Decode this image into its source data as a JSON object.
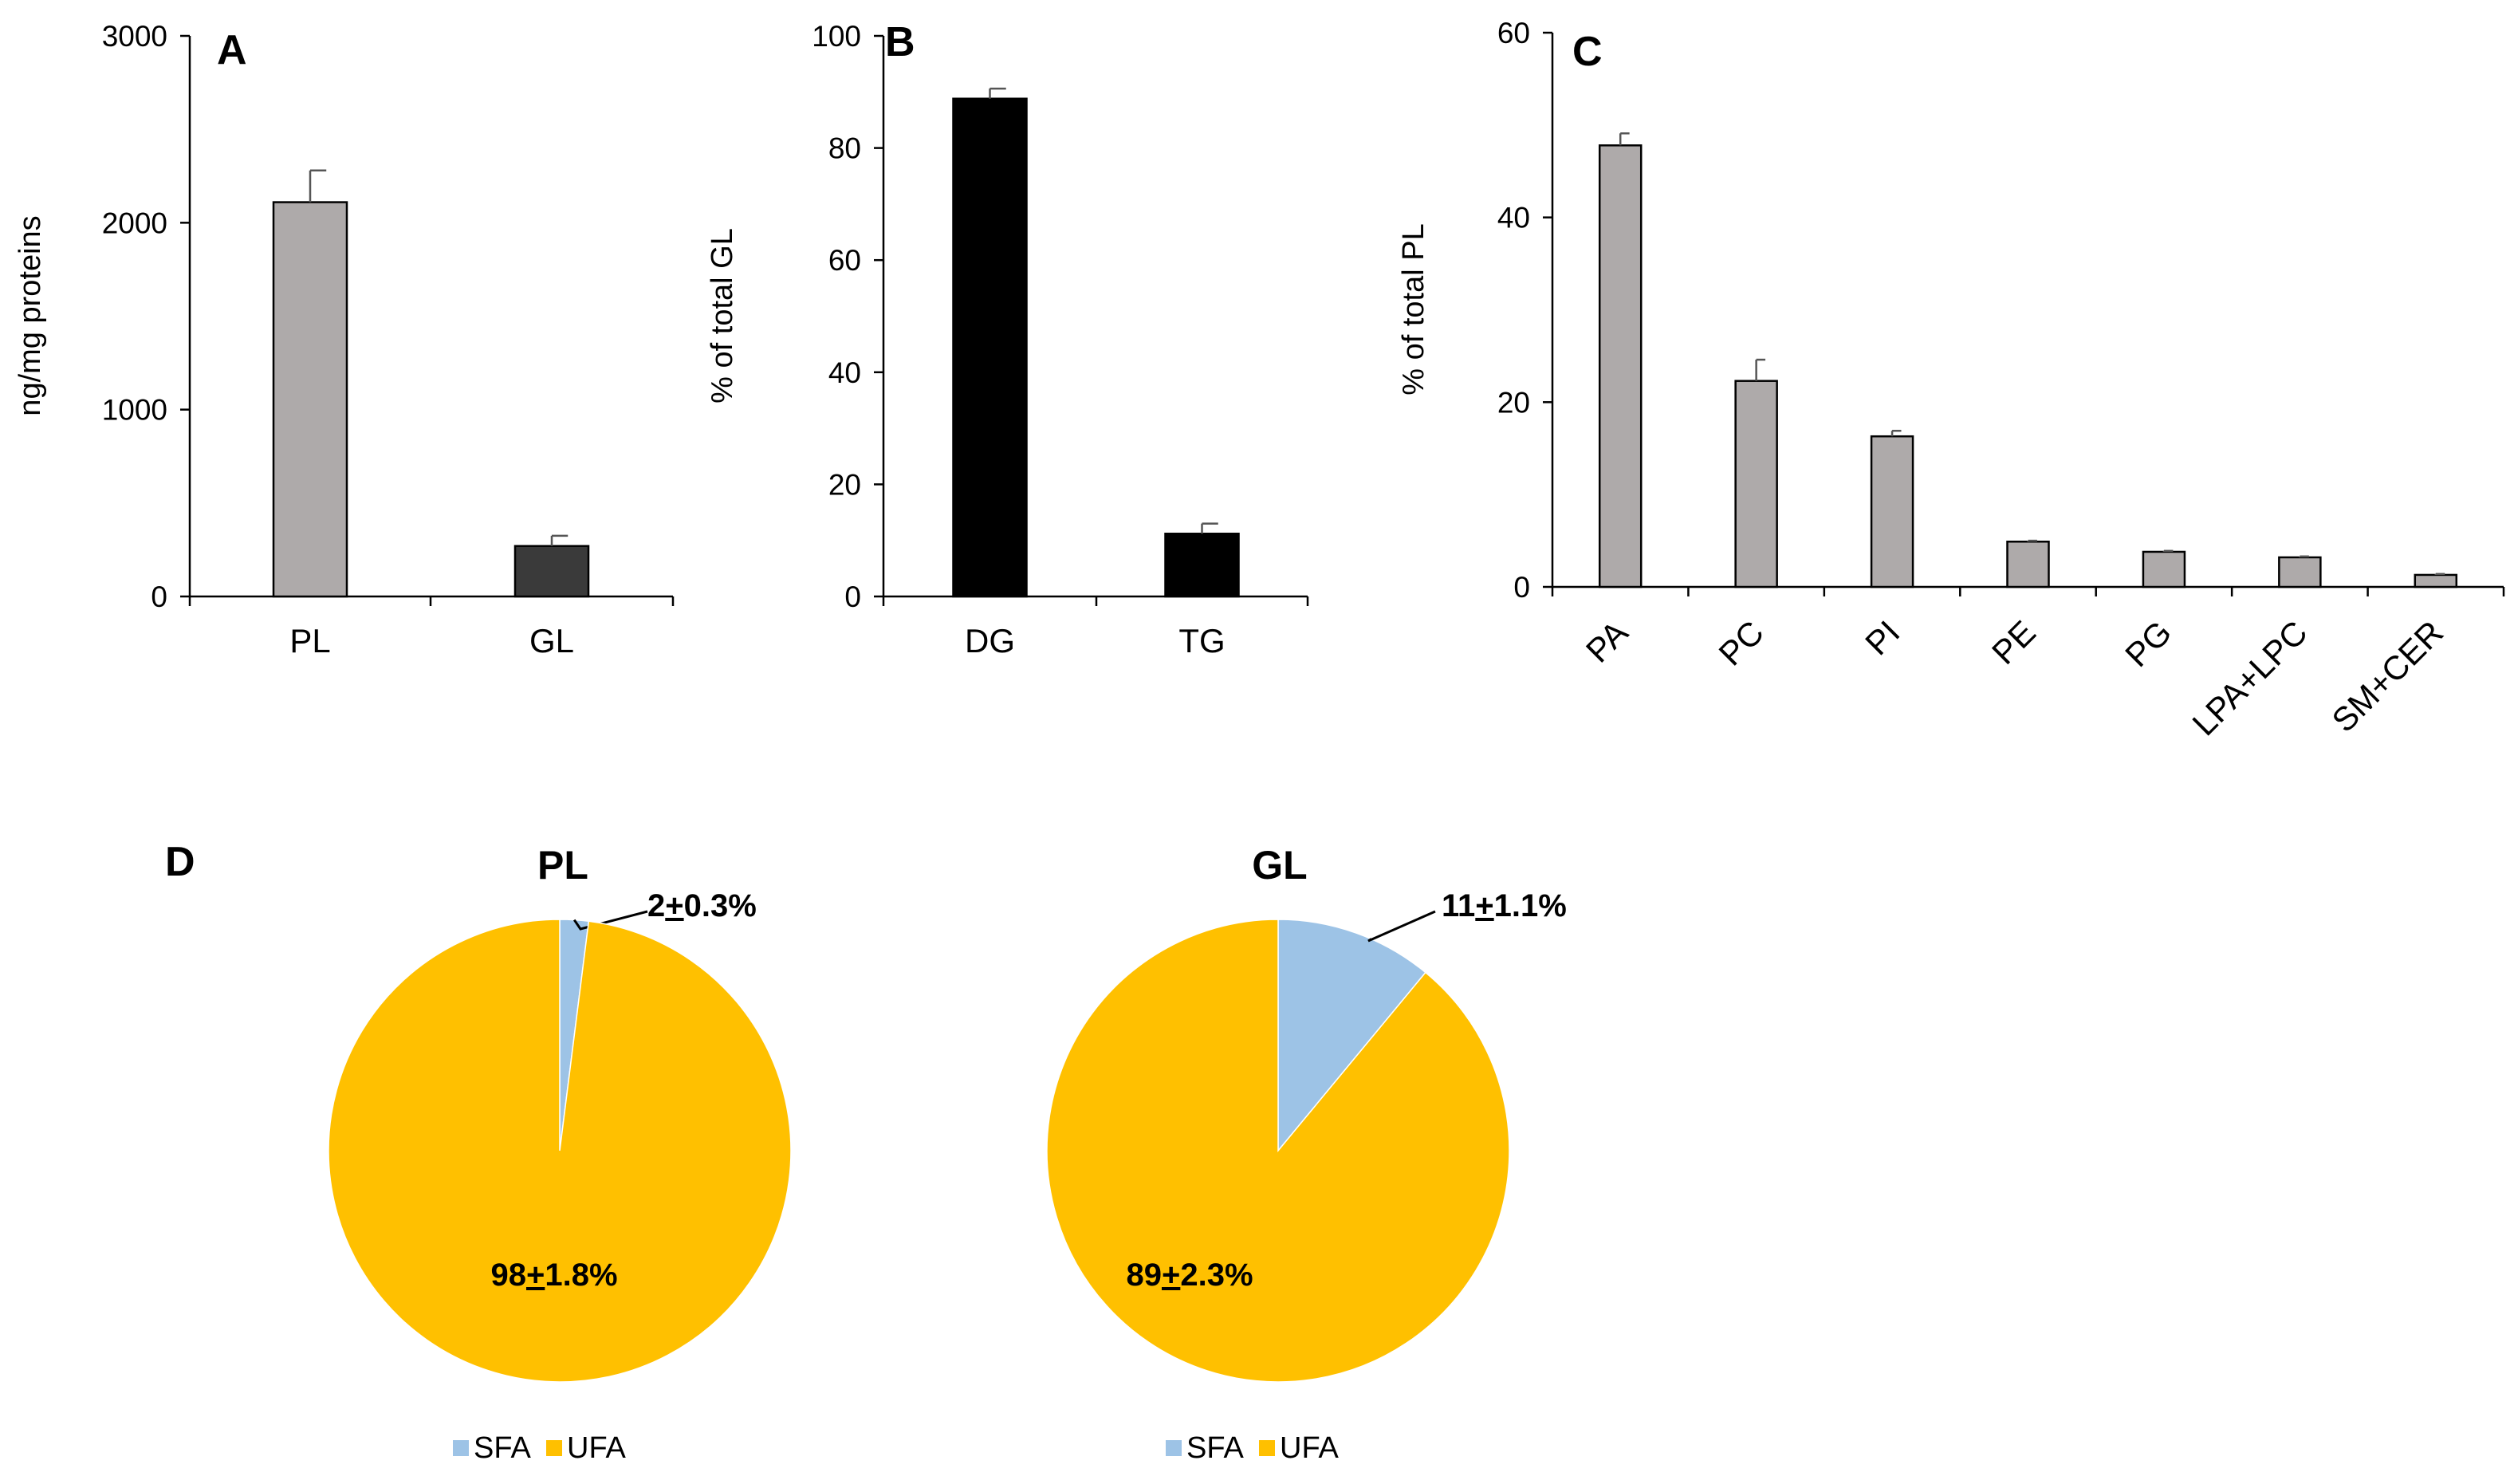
{
  "chart_data": [
    {
      "id": "A",
      "type": "bar",
      "panel_label": "A",
      "ylabel": "ng/mg proteins",
      "ylim": [
        0,
        3000
      ],
      "yticks": [
        "0",
        "1000",
        "2000",
        "3000"
      ],
      "categories": [
        "PL",
        "GL"
      ],
      "values": [
        2110,
        270
      ],
      "errors": [
        170,
        55
      ],
      "colors": [
        "#AEAAAA",
        "#3A3A3A"
      ]
    },
    {
      "id": "B",
      "type": "bar",
      "panel_label": "B",
      "ylabel": "% of total GL",
      "ylim": [
        0,
        100
      ],
      "yticks": [
        "0",
        "20",
        "40",
        "60",
        "80",
        "100"
      ],
      "categories": [
        "DG",
        "TG"
      ],
      "values": [
        88.8,
        11.2
      ],
      "errors": [
        1.8,
        1.8
      ],
      "colors": [
        "#000000",
        "#000000"
      ]
    },
    {
      "id": "C",
      "type": "bar",
      "panel_label": "C",
      "ylabel": "% of total PL",
      "ylim": [
        0,
        60
      ],
      "yticks": [
        "0",
        "20",
        "40",
        "60"
      ],
      "categories": [
        "PA",
        "PC",
        "PI",
        "PE",
        "PG",
        "LPA+LPC",
        "SM+CER"
      ],
      "values": [
        47.8,
        22.3,
        16.3,
        4.9,
        3.8,
        3.2,
        1.3
      ],
      "errors": [
        1.3,
        2.3,
        0.6,
        0.1,
        0.1,
        0.1,
        0.1
      ],
      "colors": [
        "#AEAAAA",
        "#AEAAAA",
        "#AEAAAA",
        "#AEAAAA",
        "#AEAAAA",
        "#AEAAAA",
        "#AEAAAA"
      ]
    },
    {
      "id": "D-PL",
      "type": "pie",
      "panel_label": "D",
      "title": "PL",
      "labels": [
        "SFA",
        "UFA"
      ],
      "values": [
        2,
        98
      ],
      "colors": [
        "#9DC3E6",
        "#FFC000"
      ],
      "slice_labels": [
        {
          "main": "2",
          "pm": "+",
          "rest": "0.3%"
        },
        {
          "main": "98",
          "pm": "+",
          "rest": "1.8%"
        }
      ]
    },
    {
      "id": "D-GL",
      "type": "pie",
      "title": "GL",
      "labels": [
        "SFA",
        "UFA"
      ],
      "values": [
        11,
        89
      ],
      "colors": [
        "#9DC3E6",
        "#FFC000"
      ],
      "slice_labels": [
        {
          "main": "11",
          "pm": "+",
          "rest": "1.1%"
        },
        {
          "main": "89",
          "pm": "+",
          "rest": "2.3%"
        }
      ]
    }
  ]
}
